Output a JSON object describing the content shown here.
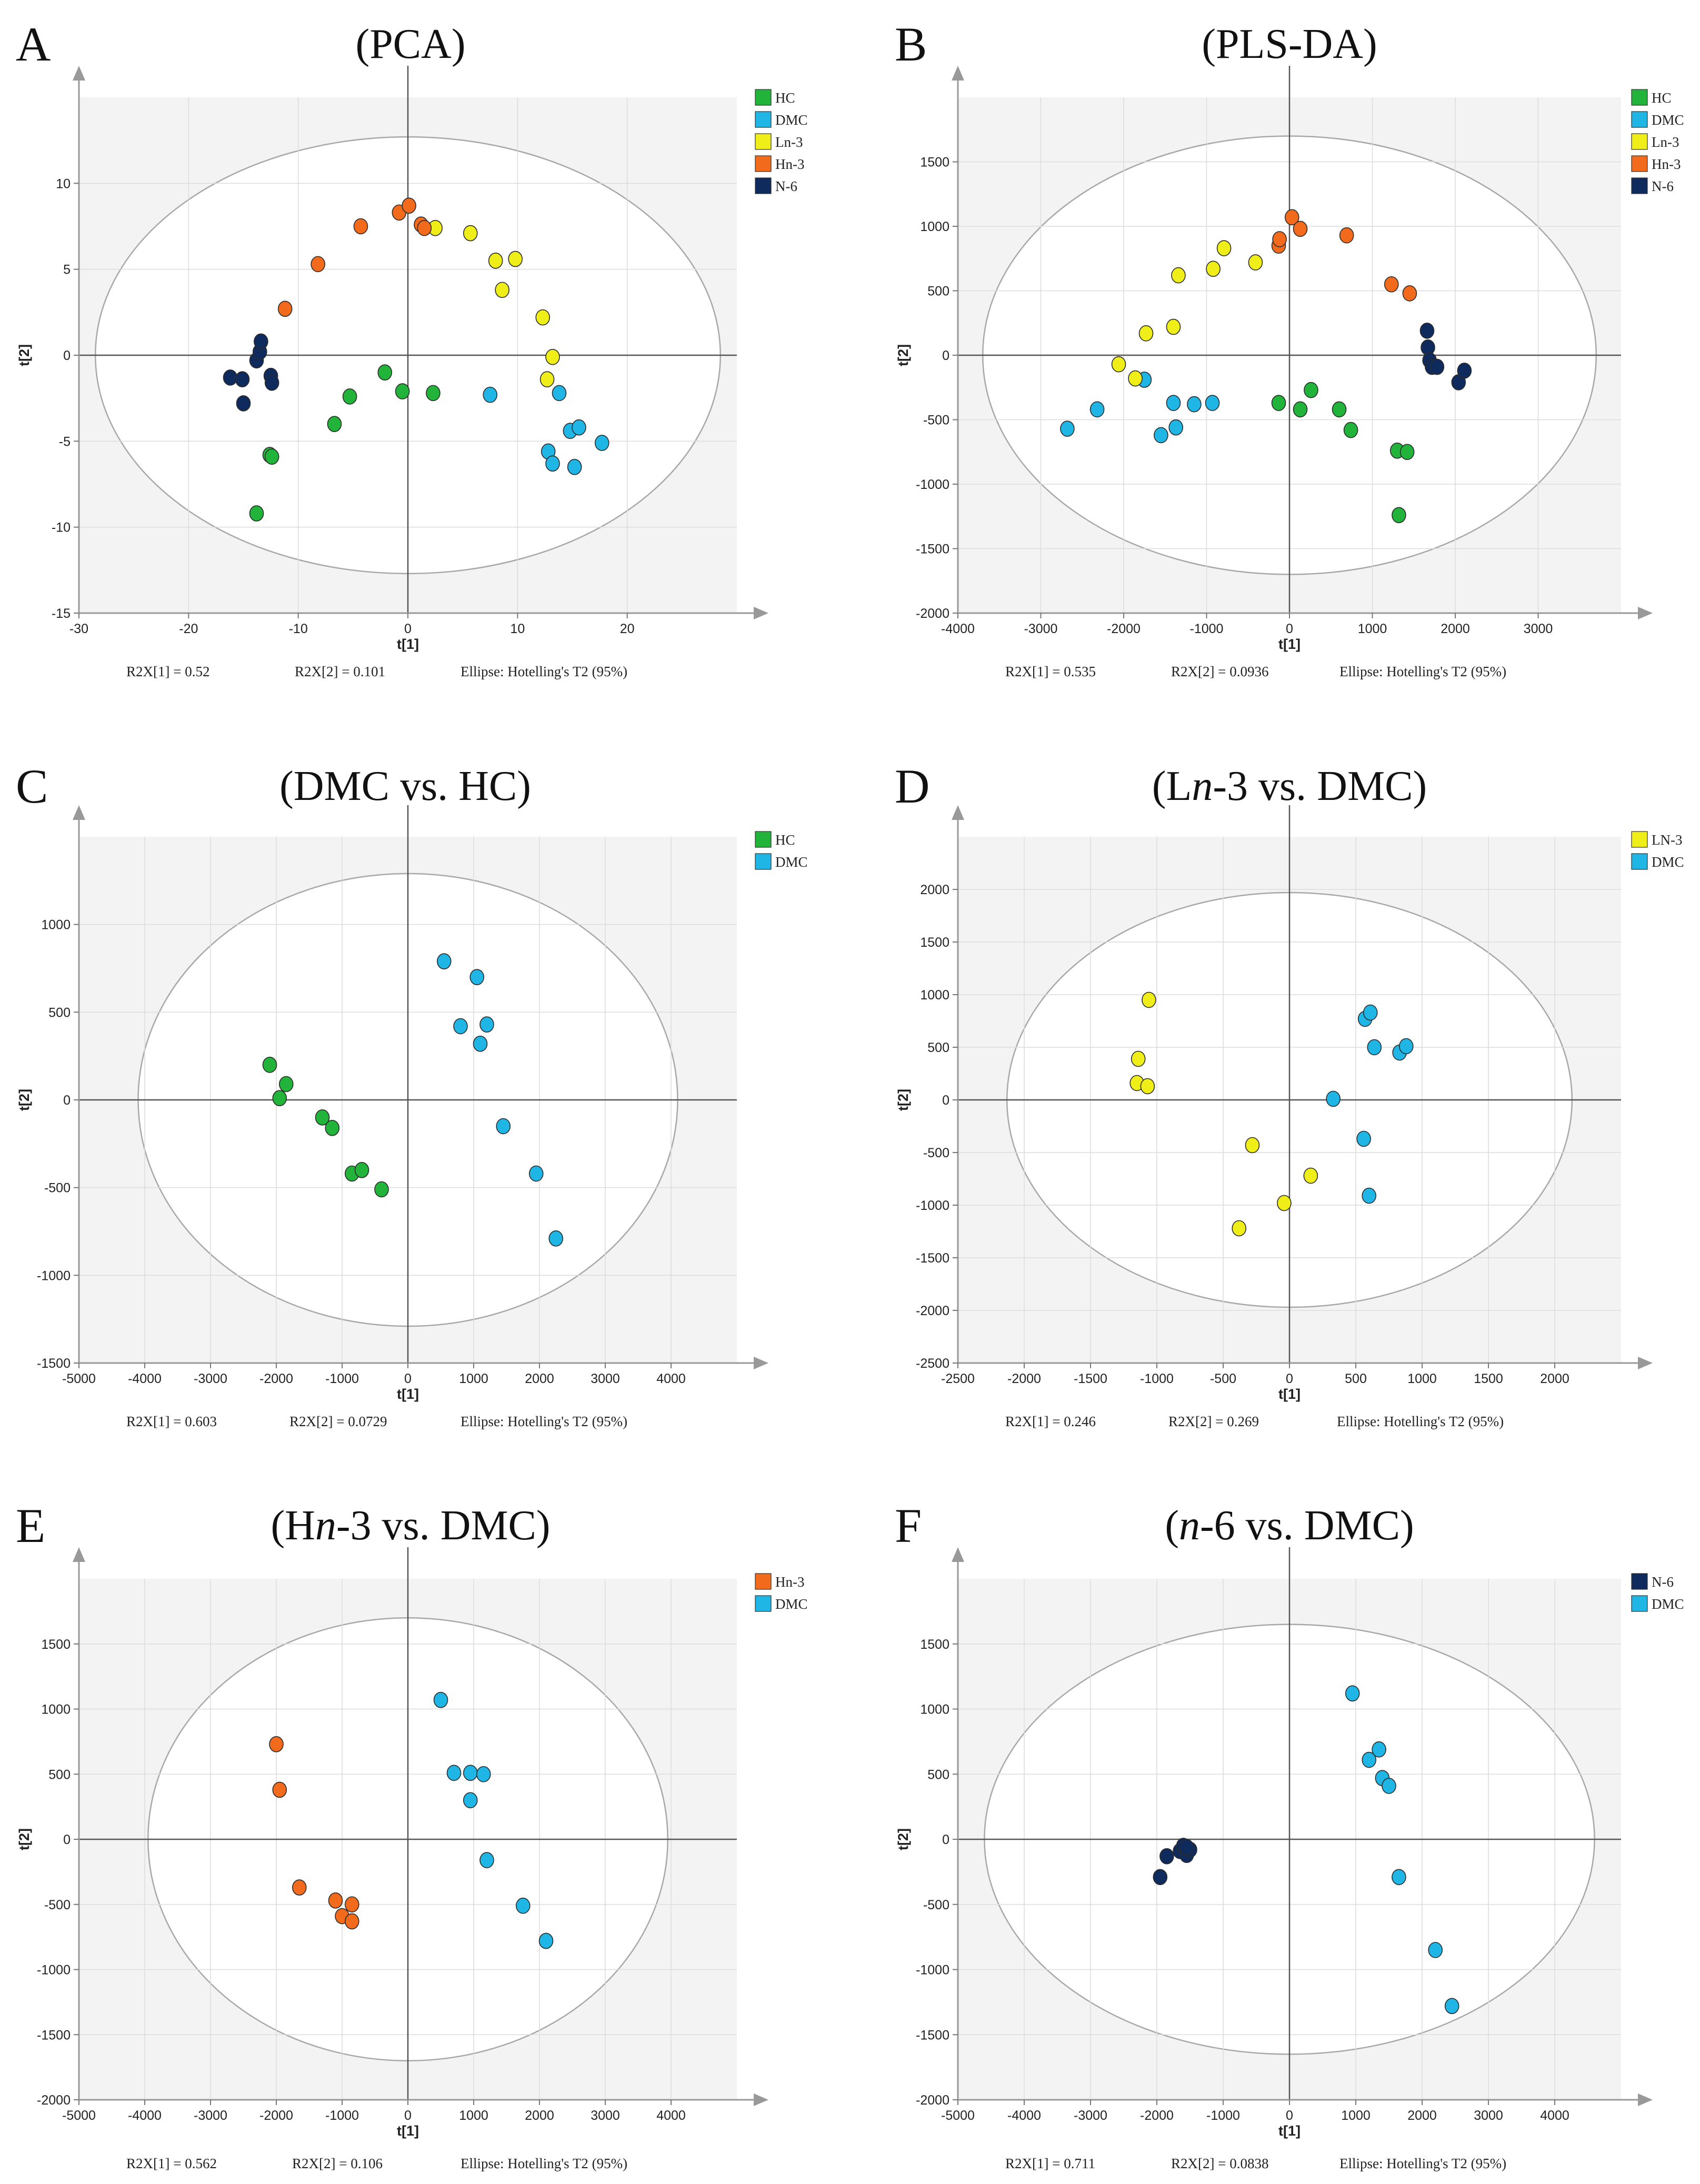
{
  "footer_labels": {
    "r2x1": "R2X[1] = ",
    "r2x2": "R2X[2] = ",
    "ellipse": "Ellipse: Hotelling's T2 (95%)"
  },
  "colors": {
    "HC": "#22b33a",
    "DMC": "#1fb6e6",
    "Ln3": "#f0ee19",
    "Hn3": "#f26a1b",
    "N6": "#0f2a5c"
  },
  "chart_data": [
    {
      "type": "scatter",
      "letter": "A",
      "title": "(PCA)",
      "xlabel": "t[1]",
      "ylabel": "t[2]",
      "xlim": [
        -30,
        30
      ],
      "ylim": [
        -15,
        15
      ],
      "xticks": [
        -30,
        -20,
        -10,
        0,
        10,
        20
      ],
      "yticks": [
        -15,
        -10,
        -5,
        0,
        5,
        10
      ],
      "ellipse": {
        "cx": 0,
        "cy": 0,
        "rx": 28.5,
        "ry": 12.7
      },
      "r2x1": "0.52",
      "r2x2": "0.101",
      "series": [
        {
          "name": "HC",
          "color": "#22b33a",
          "points": [
            [
              -13.8,
              -9.2
            ],
            [
              -12.6,
              -5.8
            ],
            [
              -12.4,
              -5.9
            ],
            [
              -6.7,
              -4.0
            ],
            [
              -5.3,
              -2.4
            ],
            [
              -2.1,
              -1.0
            ],
            [
              -0.5,
              -2.1
            ],
            [
              2.3,
              -2.2
            ]
          ]
        },
        {
          "name": "DMC",
          "color": "#1fb6e6",
          "points": [
            [
              7.5,
              -2.3
            ],
            [
              12.8,
              -5.6
            ],
            [
              13.2,
              -6.3
            ],
            [
              13.8,
              -2.2
            ],
            [
              14.8,
              -4.4
            ],
            [
              15.2,
              -6.5
            ],
            [
              15.6,
              -4.2
            ],
            [
              17.7,
              -5.1
            ]
          ]
        },
        {
          "name": "Ln-3",
          "color": "#f0ee19",
          "points": [
            [
              2.5,
              7.4
            ],
            [
              5.7,
              7.1
            ],
            [
              8.0,
              5.5
            ],
            [
              8.6,
              3.8
            ],
            [
              9.8,
              5.6
            ],
            [
              12.3,
              2.2
            ],
            [
              12.7,
              -1.4
            ],
            [
              13.2,
              -0.1
            ]
          ]
        },
        {
          "name": "Hn-3",
          "color": "#f26a1b",
          "points": [
            [
              -11.2,
              2.7
            ],
            [
              -8.2,
              5.3
            ],
            [
              -4.3,
              7.5
            ],
            [
              -0.8,
              8.3
            ],
            [
              0.1,
              8.7
            ],
            [
              1.2,
              7.6
            ],
            [
              1.5,
              7.4
            ]
          ]
        },
        {
          "name": "N-6",
          "color": "#0f2a5c",
          "points": [
            [
              -16.2,
              -1.3
            ],
            [
              -15.1,
              -1.4
            ],
            [
              -15.0,
              -2.8
            ],
            [
              -13.8,
              -0.3
            ],
            [
              -13.5,
              0.2
            ],
            [
              -13.4,
              0.8
            ],
            [
              -12.5,
              -1.2
            ],
            [
              -12.4,
              -1.6
            ]
          ]
        }
      ]
    },
    {
      "type": "scatter",
      "letter": "B",
      "title": "(PLS-DA)",
      "xlabel": "t[1]",
      "ylabel": "t[2]",
      "xlim": [
        -4000,
        4000
      ],
      "ylim": [
        -2000,
        2000
      ],
      "xticks": [
        -4000,
        -3000,
        -2000,
        -1000,
        0,
        1000,
        2000,
        3000
      ],
      "yticks": [
        -2000,
        -1500,
        -1000,
        -500,
        0,
        500,
        1000,
        1500
      ],
      "ellipse": {
        "cx": 0,
        "cy": 0,
        "rx": 3700,
        "ry": 1700
      },
      "r2x1": "0.535",
      "r2x2": "0.0936",
      "series": [
        {
          "name": "HC",
          "color": "#22b33a",
          "points": [
            [
              -130,
              -370
            ],
            [
              130,
              -420
            ],
            [
              260,
              -270
            ],
            [
              600,
              -420
            ],
            [
              740,
              -580
            ],
            [
              1300,
              -740
            ],
            [
              1420,
              -750
            ],
            [
              1320,
              -1240
            ]
          ]
        },
        {
          "name": "DMC",
          "color": "#1fb6e6",
          "points": [
            [
              -2680,
              -570
            ],
            [
              -2320,
              -420
            ],
            [
              -1750,
              -190
            ],
            [
              -1550,
              -620
            ],
            [
              -1400,
              -370
            ],
            [
              -1370,
              -560
            ],
            [
              -1150,
              -380
            ],
            [
              -930,
              -370
            ]
          ]
        },
        {
          "name": "Ln-3",
          "color": "#f0ee19",
          "points": [
            [
              -2060,
              -70
            ],
            [
              -1860,
              -180
            ],
            [
              -1730,
              170
            ],
            [
              -1400,
              220
            ],
            [
              -1340,
              620
            ],
            [
              -920,
              670
            ],
            [
              -790,
              830
            ],
            [
              -410,
              720
            ]
          ]
        },
        {
          "name": "Hn-3",
          "color": "#f26a1b",
          "points": [
            [
              -130,
              850
            ],
            [
              -120,
              900
            ],
            [
              30,
              1070
            ],
            [
              130,
              980
            ],
            [
              690,
              930
            ],
            [
              1230,
              550
            ],
            [
              1450,
              480
            ]
          ]
        },
        {
          "name": "N-6",
          "color": "#0f2a5c",
          "points": [
            [
              1660,
              190
            ],
            [
              1670,
              60
            ],
            [
              1690,
              -40
            ],
            [
              1720,
              -90
            ],
            [
              1780,
              -90
            ],
            [
              2040,
              -210
            ],
            [
              2110,
              -120
            ]
          ]
        }
      ]
    },
    {
      "type": "scatter",
      "letter": "C",
      "title": "(DMC vs. HC)",
      "xlabel": "t[1]",
      "ylabel": "t[2]",
      "xlim": [
        -5000,
        5000
      ],
      "ylim": [
        -1500,
        1500
      ],
      "xticks": [
        -5000,
        -4000,
        -3000,
        -2000,
        -1000,
        0,
        1000,
        2000,
        3000,
        4000
      ],
      "yticks": [
        -1500,
        -1000,
        -500,
        0,
        500,
        1000
      ],
      "ellipse": {
        "cx": 0,
        "cy": 0,
        "rx": 4100,
        "ry": 1290
      },
      "r2x1": "0.603",
      "r2x2": "0.0729",
      "series": [
        {
          "name": "HC",
          "color": "#22b33a",
          "points": [
            [
              -2100,
              200
            ],
            [
              -1950,
              10
            ],
            [
              -1850,
              90
            ],
            [
              -1300,
              -100
            ],
            [
              -1150,
              -160
            ],
            [
              -850,
              -420
            ],
            [
              -700,
              -400
            ],
            [
              -400,
              -510
            ]
          ]
        },
        {
          "name": "DMC",
          "color": "#1fb6e6",
          "points": [
            [
              550,
              790
            ],
            [
              800,
              420
            ],
            [
              1050,
              700
            ],
            [
              1100,
              320
            ],
            [
              1200,
              430
            ],
            [
              1450,
              -150
            ],
            [
              1950,
              -420
            ],
            [
              2250,
              -790
            ]
          ]
        }
      ]
    },
    {
      "type": "scatter",
      "letter": "D",
      "title": "(L",
      "title_italic": "n",
      "title_rest": "-3 vs. DMC)",
      "xlabel": "t[1]",
      "ylabel": "t[2]",
      "xlim": [
        -2500,
        2500
      ],
      "ylim": [
        -2500,
        2500
      ],
      "xticks": [
        -2500,
        -2000,
        -1500,
        -1000,
        -500,
        0,
        500,
        1000,
        1500,
        2000
      ],
      "yticks": [
        -2500,
        -2000,
        -1500,
        -1000,
        -500,
        0,
        500,
        1000,
        1500,
        2000
      ],
      "ellipse": {
        "cx": 0,
        "cy": 0,
        "rx": 2130,
        "ry": 1970
      },
      "r2x1": "0.246",
      "r2x2": "0.269",
      "series": [
        {
          "name": "LN-3",
          "color": "#f0ee19",
          "points": [
            [
              -1060,
              950
            ],
            [
              -1140,
              390
            ],
            [
              -1150,
              160
            ],
            [
              -1070,
              130
            ],
            [
              -280,
              -430
            ],
            [
              -380,
              -1220
            ],
            [
              -40,
              -980
            ],
            [
              160,
              -720
            ]
          ]
        },
        {
          "name": "DMC",
          "color": "#1fb6e6",
          "points": [
            [
              570,
              770
            ],
            [
              610,
              830
            ],
            [
              640,
              500
            ],
            [
              830,
              450
            ],
            [
              880,
              510
            ],
            [
              330,
              10
            ],
            [
              560,
              -370
            ],
            [
              600,
              -910
            ]
          ]
        }
      ]
    },
    {
      "type": "scatter",
      "letter": "E",
      "title": "(H",
      "title_italic": "n",
      "title_rest": "-3 vs. DMC)",
      "xlabel": "t[1]",
      "ylabel": "t[2]",
      "xlim": [
        -5000,
        5000
      ],
      "ylim": [
        -2000,
        2000
      ],
      "xticks": [
        -5000,
        -4000,
        -3000,
        -2000,
        -1000,
        0,
        1000,
        2000,
        3000,
        4000
      ],
      "yticks": [
        -2000,
        -1500,
        -1000,
        -500,
        0,
        500,
        1000,
        1500
      ],
      "ellipse": {
        "cx": 0,
        "cy": 0,
        "rx": 3950,
        "ry": 1700
      },
      "r2x1": "0.562",
      "r2x2": "0.106",
      "series": [
        {
          "name": "Hn-3",
          "color": "#f26a1b",
          "points": [
            [
              -2000,
              730
            ],
            [
              -1950,
              380
            ],
            [
              -1650,
              -370
            ],
            [
              -1100,
              -470
            ],
            [
              -1000,
              -590
            ],
            [
              -850,
              -500
            ],
            [
              -850,
              -630
            ]
          ]
        },
        {
          "name": "DMC",
          "color": "#1fb6e6",
          "points": [
            [
              500,
              1070
            ],
            [
              700,
              510
            ],
            [
              950,
              510
            ],
            [
              950,
              300
            ],
            [
              1150,
              500
            ],
            [
              1200,
              -160
            ],
            [
              1750,
              -510
            ],
            [
              2100,
              -780
            ]
          ]
        }
      ]
    },
    {
      "type": "scatter",
      "letter": "F",
      "title": "(",
      "title_italic": "n",
      "title_rest": "-6 vs. DMC)",
      "xlabel": "t[1]",
      "ylabel": "t[2]",
      "xlim": [
        -5000,
        5000
      ],
      "ylim": [
        -2000,
        2000
      ],
      "xticks": [
        -5000,
        -4000,
        -3000,
        -2000,
        -1000,
        0,
        1000,
        2000,
        3000,
        4000
      ],
      "yticks": [
        -2000,
        -1500,
        -1000,
        -500,
        0,
        500,
        1000,
        1500
      ],
      "ellipse": {
        "cx": 0,
        "cy": 0,
        "rx": 4600,
        "ry": 1650
      },
      "r2x1": "0.711",
      "r2x2": "0.0838",
      "series": [
        {
          "name": "N-6",
          "color": "#0f2a5c",
          "points": [
            [
              -1950,
              -290
            ],
            [
              -1850,
              -130
            ],
            [
              -1650,
              -90
            ],
            [
              -1600,
              -50
            ],
            [
              -1550,
              -120
            ],
            [
              -1500,
              -80
            ],
            [
              -1550,
              -60
            ]
          ]
        },
        {
          "name": "DMC",
          "color": "#1fb6e6",
          "points": [
            [
              950,
              1120
            ],
            [
              1200,
              610
            ],
            [
              1350,
              690
            ],
            [
              1400,
              470
            ],
            [
              1500,
              410
            ],
            [
              1650,
              -290
            ],
            [
              2200,
              -850
            ],
            [
              2450,
              -1280
            ]
          ]
        }
      ]
    }
  ]
}
